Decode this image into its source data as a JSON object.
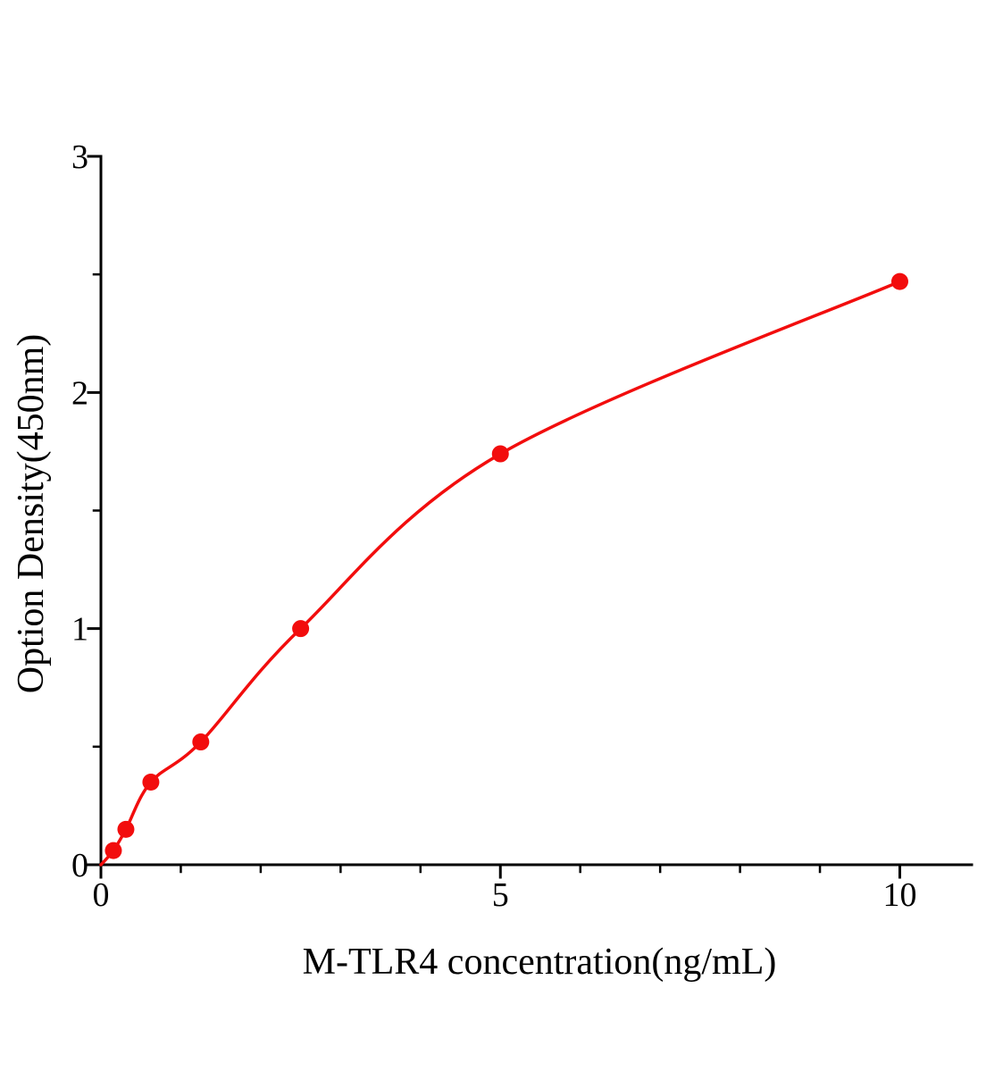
{
  "figure": {
    "background": "#ffffff",
    "title": ""
  },
  "chart_data": {
    "type": "scatter",
    "title": "",
    "xlabel": "M-TLR4 concentration(ng/mL)",
    "ylabel": "Option Density(450nm)",
    "x": [
      0.156,
      0.3125,
      0.625,
      1.25,
      2.5,
      5,
      10
    ],
    "y": [
      0.06,
      0.15,
      0.35,
      0.52,
      1.0,
      1.74,
      2.47
    ],
    "curve": {
      "style": "smooth",
      "through_origin": true
    },
    "xlim": [
      0,
      10.9
    ],
    "ylim": [
      0,
      3
    ],
    "x_major_ticks": [
      0,
      5,
      10
    ],
    "x_minor_step": 1,
    "y_major_ticks": [
      0,
      1,
      2,
      3
    ],
    "y_minor_step": 0.5,
    "grid": false,
    "legend": "none",
    "point_color": "#f20d0d",
    "line_color": "#f20d0d",
    "axis_color": "#000000",
    "marker_radius": 9.5,
    "line_width": 3.5
  }
}
